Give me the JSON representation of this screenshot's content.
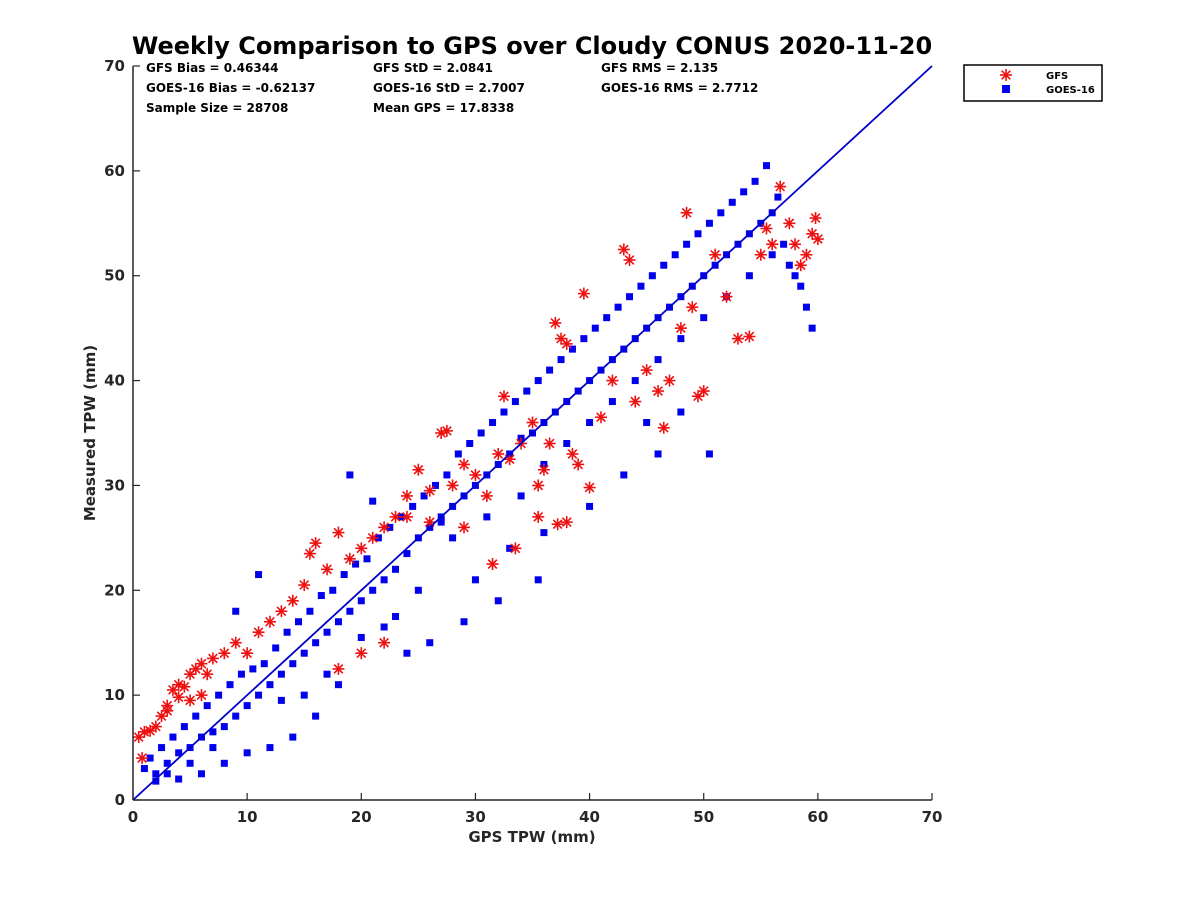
{
  "chart_data": {
    "type": "scatter",
    "title": "Weekly Comparison to GPS over Cloudy CONUS 2020-11-20",
    "xlabel": "GPS TPW (mm)",
    "ylabel": "Measured TPW (mm)",
    "xlim": [
      0,
      70
    ],
    "ylim": [
      0,
      70
    ],
    "x_ticks": [
      "0",
      "10",
      "20",
      "30",
      "40",
      "50",
      "60",
      "70"
    ],
    "y_ticks": [
      "0",
      "10",
      "20",
      "30",
      "40",
      "50",
      "60",
      "70"
    ],
    "grid": false,
    "legend": {
      "placement": "outside-top-right",
      "entries": [
        "GFS",
        "GOES-16"
      ]
    },
    "stats": [
      [
        "GFS Bias = 0.46344",
        "GFS StD = 2.0841",
        "GFS RMS = 2.135"
      ],
      [
        "GOES-16 Bias = -0.62137",
        "GOES-16 StD = 2.7007",
        "GOES-16 RMS = 2.7712"
      ],
      [
        "Sample Size = 28708",
        "Mean GPS = 17.8338",
        ""
      ]
    ],
    "reference_line": {
      "x": [
        0,
        70
      ],
      "y": [
        0,
        70
      ],
      "color": "#0000cc"
    },
    "series": [
      {
        "name": "GFS",
        "marker": "asterisk",
        "color": "#ee1111",
        "points": [
          [
            0.5,
            6
          ],
          [
            1,
            6.5
          ],
          [
            1.5,
            6.6
          ],
          [
            0.8,
            4
          ],
          [
            2,
            7
          ],
          [
            2.5,
            8
          ],
          [
            3,
            8.5
          ],
          [
            3.5,
            10.5
          ],
          [
            4,
            11
          ],
          [
            4.5,
            10.8
          ],
          [
            5,
            12
          ],
          [
            5.5,
            12.5
          ],
          [
            6,
            13
          ],
          [
            6.5,
            12
          ],
          [
            7,
            13.5
          ],
          [
            3,
            9
          ],
          [
            4,
            9.8
          ],
          [
            5,
            9.5
          ],
          [
            6,
            10
          ],
          [
            8,
            14
          ],
          [
            9,
            15
          ],
          [
            10,
            14
          ],
          [
            11,
            16
          ],
          [
            12,
            17
          ],
          [
            13,
            18
          ],
          [
            14,
            19
          ],
          [
            15,
            20.5
          ],
          [
            16,
            24.5
          ],
          [
            15.5,
            23.5
          ],
          [
            17,
            22
          ],
          [
            18,
            25.5
          ],
          [
            19,
            23
          ],
          [
            20,
            24
          ],
          [
            21,
            25
          ],
          [
            22,
            26
          ],
          [
            23,
            27
          ],
          [
            24,
            29
          ],
          [
            25,
            31.5
          ],
          [
            26,
            29.5
          ],
          [
            27,
            35
          ],
          [
            27.5,
            35.2
          ],
          [
            28,
            30
          ],
          [
            29,
            32
          ],
          [
            30,
            31
          ],
          [
            31,
            29
          ],
          [
            32,
            33
          ],
          [
            32.5,
            38.5
          ],
          [
            33,
            32.5
          ],
          [
            34,
            34
          ],
          [
            35,
            36
          ],
          [
            35.5,
            30
          ],
          [
            36,
            31.5
          ],
          [
            37,
            45.5
          ],
          [
            37.5,
            44
          ],
          [
            38,
            43.5
          ],
          [
            38.5,
            33
          ],
          [
            39,
            32
          ],
          [
            39.5,
            48.3
          ],
          [
            40,
            29.8
          ],
          [
            41,
            36.5
          ],
          [
            42,
            40
          ],
          [
            43,
            52.5
          ],
          [
            43.5,
            51.5
          ],
          [
            44,
            38
          ],
          [
            45,
            41
          ],
          [
            46,
            39
          ],
          [
            46.5,
            35.5
          ],
          [
            47,
            40
          ],
          [
            48,
            45
          ],
          [
            49,
            47
          ],
          [
            49.5,
            38.5
          ],
          [
            50,
            39
          ],
          [
            51,
            52
          ],
          [
            52,
            48
          ],
          [
            53,
            44
          ],
          [
            54,
            44.2
          ],
          [
            55,
            52
          ],
          [
            56,
            53
          ],
          [
            56.7,
            58.5
          ],
          [
            57.5,
            55
          ],
          [
            58,
            53
          ],
          [
            58.5,
            51
          ],
          [
            59,
            52
          ],
          [
            59.5,
            54
          ],
          [
            60,
            53.5
          ],
          [
            59.8,
            55.5
          ],
          [
            55.5,
            54.5
          ],
          [
            48.5,
            56
          ],
          [
            38,
            26.5
          ],
          [
            37.2,
            26.3
          ],
          [
            35.5,
            27
          ],
          [
            36.5,
            34
          ],
          [
            33.5,
            24
          ],
          [
            31.5,
            22.5
          ],
          [
            29,
            26
          ],
          [
            26,
            26.5
          ],
          [
            24,
            27
          ],
          [
            20,
            14
          ],
          [
            22,
            15
          ],
          [
            18,
            12.5
          ]
        ]
      },
      {
        "name": "GOES-16",
        "marker": "square",
        "color": "#0000ee",
        "points": [
          [
            1,
            3
          ],
          [
            1.5,
            4
          ],
          [
            2,
            2.5
          ],
          [
            2.5,
            5
          ],
          [
            3,
            3.5
          ],
          [
            3.5,
            6
          ],
          [
            4,
            4.5
          ],
          [
            4.5,
            7
          ],
          [
            5,
            5
          ],
          [
            5.5,
            8
          ],
          [
            6,
            6
          ],
          [
            6.5,
            9
          ],
          [
            7,
            6.5
          ],
          [
            7.5,
            10
          ],
          [
            8,
            7
          ],
          [
            8.5,
            11
          ],
          [
            9,
            8
          ],
          [
            9.5,
            12
          ],
          [
            10,
            9
          ],
          [
            10.5,
            12.5
          ],
          [
            11,
            10
          ],
          [
            11.5,
            13
          ],
          [
            12,
            11
          ],
          [
            12.5,
            14.5
          ],
          [
            13,
            12
          ],
          [
            13.5,
            16
          ],
          [
            14,
            13
          ],
          [
            14.5,
            17
          ],
          [
            15,
            14
          ],
          [
            15.5,
            18
          ],
          [
            16,
            15
          ],
          [
            16.5,
            19.5
          ],
          [
            17,
            16
          ],
          [
            17.5,
            20
          ],
          [
            18,
            17
          ],
          [
            18.5,
            21.5
          ],
          [
            19,
            18
          ],
          [
            19.5,
            22.5
          ],
          [
            20,
            19
          ],
          [
            20.5,
            23
          ],
          [
            21,
            20
          ],
          [
            21.5,
            25
          ],
          [
            22,
            21
          ],
          [
            22.5,
            26
          ],
          [
            23,
            22
          ],
          [
            23.5,
            27
          ],
          [
            24,
            23.5
          ],
          [
            24.5,
            28
          ],
          [
            25,
            25
          ],
          [
            25.5,
            29
          ],
          [
            26,
            26
          ],
          [
            26.5,
            30
          ],
          [
            27,
            27
          ],
          [
            27.5,
            31
          ],
          [
            28,
            28
          ],
          [
            28.5,
            33
          ],
          [
            29,
            29
          ],
          [
            29.5,
            34
          ],
          [
            30,
            30
          ],
          [
            30.5,
            35
          ],
          [
            31,
            31
          ],
          [
            31.5,
            36
          ],
          [
            32,
            32
          ],
          [
            32.5,
            37
          ],
          [
            33,
            33
          ],
          [
            33.5,
            38
          ],
          [
            34,
            34.5
          ],
          [
            34.5,
            39
          ],
          [
            35,
            35
          ],
          [
            35.5,
            40
          ],
          [
            36,
            36
          ],
          [
            36.5,
            41
          ],
          [
            37,
            37
          ],
          [
            37.5,
            42
          ],
          [
            38,
            38
          ],
          [
            38.5,
            43
          ],
          [
            39,
            39
          ],
          [
            39.5,
            44
          ],
          [
            40,
            40
          ],
          [
            40.5,
            45
          ],
          [
            41,
            41
          ],
          [
            41.5,
            46
          ],
          [
            42,
            42
          ],
          [
            42.5,
            47
          ],
          [
            43,
            43
          ],
          [
            43.5,
            48
          ],
          [
            44,
            44
          ],
          [
            44.5,
            49
          ],
          [
            45,
            45
          ],
          [
            45.5,
            50
          ],
          [
            46,
            46
          ],
          [
            46.5,
            51
          ],
          [
            47,
            47
          ],
          [
            47.5,
            52
          ],
          [
            48,
            48
          ],
          [
            48.5,
            53
          ],
          [
            49,
            49
          ],
          [
            49.5,
            54
          ],
          [
            50,
            50
          ],
          [
            50.5,
            55
          ],
          [
            51,
            51
          ],
          [
            51.5,
            56
          ],
          [
            52,
            52
          ],
          [
            52.5,
            57
          ],
          [
            53,
            53
          ],
          [
            53.5,
            58
          ],
          [
            54,
            54
          ],
          [
            54.5,
            59
          ],
          [
            55,
            55
          ],
          [
            55.5,
            60.5
          ],
          [
            56,
            56
          ],
          [
            56.5,
            57.5
          ],
          [
            57,
            53
          ],
          [
            57.5,
            51
          ],
          [
            58,
            50
          ],
          [
            58.5,
            49
          ],
          [
            59,
            47
          ],
          [
            59.5,
            45
          ],
          [
            50.5,
            33
          ],
          [
            48,
            37
          ],
          [
            46,
            33
          ],
          [
            45,
            36
          ],
          [
            43,
            31
          ],
          [
            40,
            28
          ],
          [
            36,
            25.5
          ],
          [
            35.5,
            21
          ],
          [
            32,
            19
          ],
          [
            29,
            17
          ],
          [
            26,
            15
          ],
          [
            24,
            14
          ],
          [
            22,
            16.5
          ],
          [
            20,
            15.5
          ],
          [
            18,
            11
          ],
          [
            16,
            8
          ],
          [
            14,
            6
          ],
          [
            12,
            5
          ],
          [
            10,
            4.5
          ],
          [
            8,
            3.5
          ],
          [
            6,
            2.5
          ],
          [
            4,
            2
          ],
          [
            2,
            1.8
          ],
          [
            11,
            21.5
          ],
          [
            9,
            18
          ],
          [
            19,
            31
          ],
          [
            21,
            28.5
          ],
          [
            27,
            26.5
          ],
          [
            25,
            20
          ],
          [
            23,
            17.5
          ],
          [
            30,
            21
          ],
          [
            33,
            24
          ],
          [
            15,
            10
          ],
          [
            17,
            12
          ],
          [
            13,
            9.5
          ],
          [
            7,
            5
          ],
          [
            5,
            3.5
          ],
          [
            3,
            2.5
          ],
          [
            28,
            25
          ],
          [
            31,
            27
          ],
          [
            34,
            29
          ],
          [
            36,
            32
          ],
          [
            38,
            34
          ],
          [
            40,
            36
          ],
          [
            42,
            38
          ],
          [
            44,
            40
          ],
          [
            46,
            42
          ],
          [
            48,
            44
          ],
          [
            50,
            46
          ],
          [
            52,
            48
          ],
          [
            54,
            50
          ],
          [
            56,
            52
          ]
        ]
      }
    ]
  }
}
